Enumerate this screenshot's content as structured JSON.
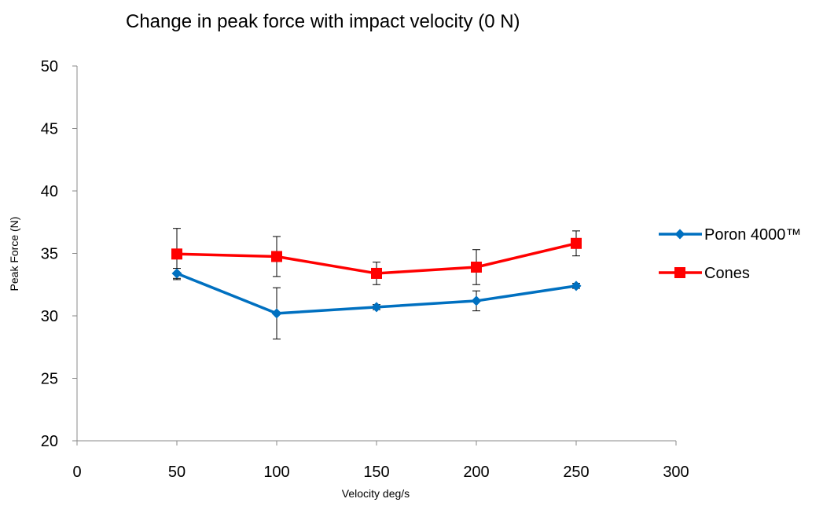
{
  "chart_data": {
    "type": "line",
    "title": "Change in peak force with impact velocity (0 N)",
    "xlabel": "Velocity deg/s",
    "ylabel": "Peak Force (N)",
    "xlim": [
      0,
      300
    ],
    "ylim": [
      20,
      50
    ],
    "x_ticks": [
      0,
      50,
      100,
      150,
      200,
      250,
      300
    ],
    "y_ticks": [
      20,
      25,
      30,
      35,
      40,
      45,
      50
    ],
    "grid": false,
    "legend_position": "right",
    "series": [
      {
        "name": "Poron 4000™",
        "color": "#0070C0",
        "marker": "diamond",
        "x": [
          50,
          100,
          150,
          200,
          250
        ],
        "y": [
          33.4,
          30.2,
          30.7,
          31.2,
          32.4
        ],
        "error": [
          0.4,
          2.05,
          0.2,
          0.8,
          0.2
        ]
      },
      {
        "name": "Cones",
        "color": "#FF0000",
        "marker": "square",
        "x": [
          50,
          100,
          150,
          200,
          250
        ],
        "y": [
          34.95,
          34.75,
          33.4,
          33.9,
          35.8
        ],
        "error": [
          2.05,
          1.6,
          0.9,
          1.4,
          1.0
        ]
      }
    ]
  }
}
